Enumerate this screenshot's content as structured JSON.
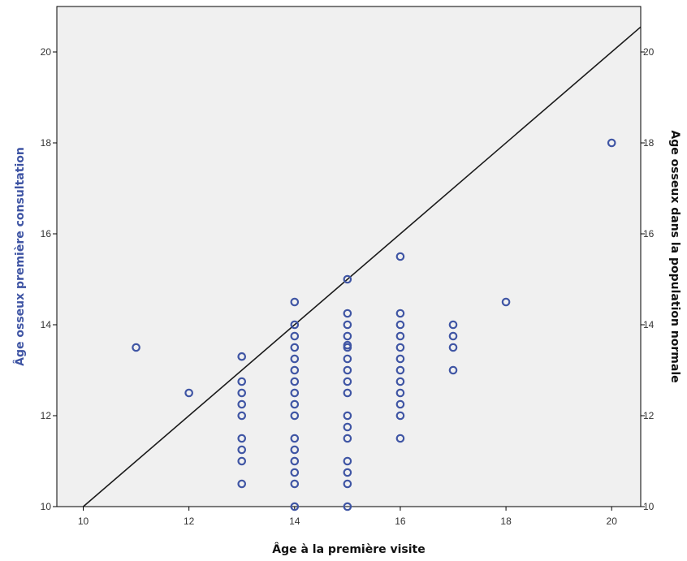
{
  "chart_data": {
    "type": "scatter",
    "xlabel": "Âge à la première visite",
    "ylabel_left": "Âge osseux première consultation",
    "ylabel_right": "Age osseux dans la population normale",
    "xlim": [
      9.5,
      20.55
    ],
    "ylim": [
      10,
      21
    ],
    "x_ticks": [
      10,
      12,
      14,
      16,
      18,
      20
    ],
    "y_ticks": [
      10,
      12,
      14,
      16,
      18,
      20
    ],
    "grid": false,
    "legend": "none",
    "reference_line": {
      "from": [
        10,
        10
      ],
      "to": [
        20.55,
        20.55
      ]
    },
    "colors": {
      "plot_background": "#f0f0f0",
      "marker": "#3f55a4",
      "left_axis_title": "#3f55a4",
      "right_axis_title": "#111111",
      "line": "#1a1a1a"
    },
    "points": [
      [
        11,
        13.5
      ],
      [
        12,
        12.5
      ],
      [
        13,
        13.3
      ],
      [
        13,
        12.75
      ],
      [
        13,
        12.5
      ],
      [
        13,
        12.25
      ],
      [
        13,
        12
      ],
      [
        13,
        11.5
      ],
      [
        13,
        11.25
      ],
      [
        13,
        11
      ],
      [
        13,
        10.5
      ],
      [
        14,
        14.5
      ],
      [
        14,
        14
      ],
      [
        14,
        13.75
      ],
      [
        14,
        13.5
      ],
      [
        14,
        13.25
      ],
      [
        14,
        13
      ],
      [
        14,
        12.75
      ],
      [
        14,
        12.5
      ],
      [
        14,
        12.25
      ],
      [
        14,
        12
      ],
      [
        14,
        11.5
      ],
      [
        14,
        11.25
      ],
      [
        14,
        11
      ],
      [
        14,
        10.75
      ],
      [
        14,
        10.5
      ],
      [
        14,
        10
      ],
      [
        15,
        15
      ],
      [
        15,
        14.25
      ],
      [
        15,
        14
      ],
      [
        15,
        13.75
      ],
      [
        15,
        13.55
      ],
      [
        15,
        13.5
      ],
      [
        15,
        13.25
      ],
      [
        15,
        13
      ],
      [
        15,
        12.75
      ],
      [
        15,
        12.5
      ],
      [
        15,
        12
      ],
      [
        15,
        11.75
      ],
      [
        15,
        11.5
      ],
      [
        15,
        11
      ],
      [
        15,
        10.75
      ],
      [
        15,
        10.5
      ],
      [
        15,
        10
      ],
      [
        16,
        15.5
      ],
      [
        16,
        14.25
      ],
      [
        16,
        14
      ],
      [
        16,
        13.75
      ],
      [
        16,
        13.5
      ],
      [
        16,
        13.25
      ],
      [
        16,
        13
      ],
      [
        16,
        12.75
      ],
      [
        16,
        12.5
      ],
      [
        16,
        12.25
      ],
      [
        16,
        12
      ],
      [
        16,
        11.5
      ],
      [
        17,
        14
      ],
      [
        17,
        13.75
      ],
      [
        17,
        13.5
      ],
      [
        17,
        13
      ],
      [
        18,
        14.5
      ],
      [
        20,
        18
      ]
    ]
  }
}
